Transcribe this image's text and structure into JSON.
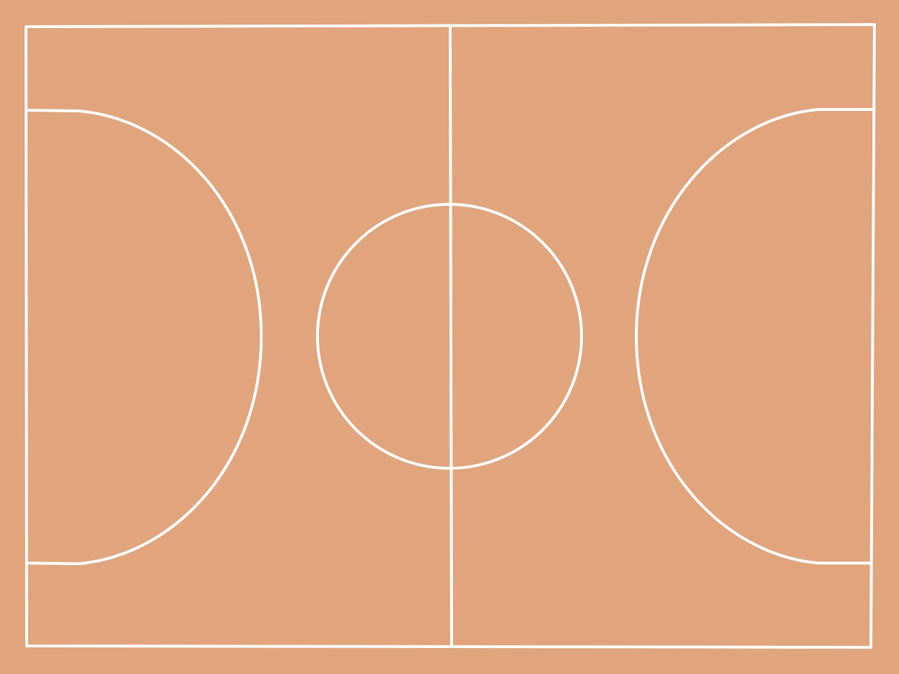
{
  "court": {
    "surface_color": "#E0A57D",
    "line_color": "#FFFFFF"
  }
}
